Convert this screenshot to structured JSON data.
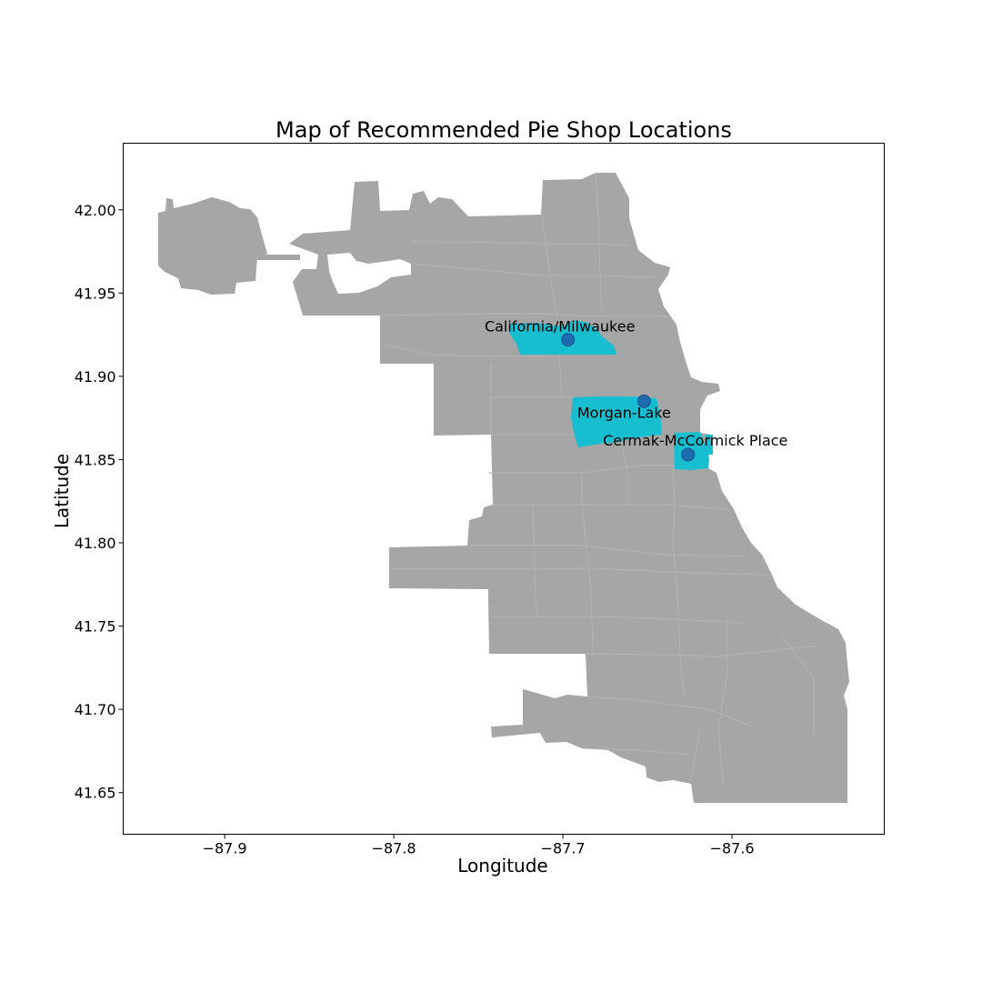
{
  "title": "Map of Recommended Pie Shop Locations",
  "xlabel": "Longitude",
  "ylabel": "Latitude",
  "colors": {
    "land": "#a6a6a6",
    "highlight": "#17becf",
    "marker": "#1f5fa8",
    "marker_edge": "#1f4f9a"
  },
  "chart_data": {
    "type": "scatter",
    "title": "Map of Recommended Pie Shop Locations",
    "xlabel": "Longitude",
    "ylabel": "Latitude",
    "xlim": [
      -87.96,
      -87.51
    ],
    "ylim": [
      41.625,
      42.04
    ],
    "x_ticks": [
      -87.9,
      -87.8,
      -87.7,
      -87.6
    ],
    "x_tick_labels": [
      "−87.9",
      "−87.8",
      "−87.7",
      "−87.6"
    ],
    "y_ticks": [
      41.65,
      41.7,
      41.75,
      41.8,
      41.85,
      41.9,
      41.95,
      42.0
    ],
    "y_tick_labels": [
      "41.65",
      "41.70",
      "41.75",
      "41.80",
      "41.85",
      "41.90",
      "41.95",
      "42.00"
    ],
    "grid": false,
    "points": [
      {
        "name": "California/Milwaukee",
        "x": -87.697,
        "y": 41.922
      },
      {
        "name": "Morgan-Lake",
        "x": -87.652,
        "y": 41.885
      },
      {
        "name": "Cermak-McCormick Place",
        "x": -87.626,
        "y": 41.853
      }
    ]
  }
}
